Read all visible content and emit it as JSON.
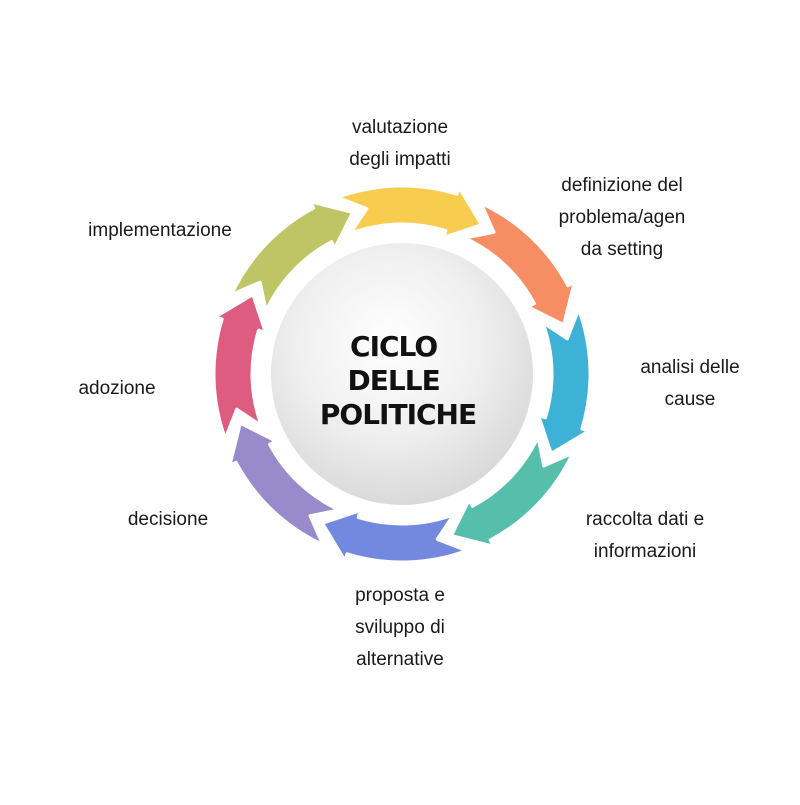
{
  "diagram": {
    "center_title_lines": [
      "CICLO",
      "DELLE",
      "POLITICHE"
    ],
    "steps": [
      {
        "label_lines": [
          "valutazione",
          "degli impatti"
        ],
        "color": "#F8CD4F"
      },
      {
        "label_lines": [
          "definizione del",
          "problema/agen",
          "da setting"
        ],
        "color": "#F68D63"
      },
      {
        "label_lines": [
          "analisi delle",
          "cause"
        ],
        "color": "#3DB1D6"
      },
      {
        "label_lines": [
          "raccolta dati e",
          "informazioni"
        ],
        "color": "#55BFAC"
      },
      {
        "label_lines": [
          "proposta e",
          "sviluppo di",
          "alternative"
        ],
        "color": "#7389E0"
      },
      {
        "label_lines": [
          "decisione"
        ],
        "color": "#988ACB"
      },
      {
        "label_lines": [
          "adozione"
        ],
        "color": "#DE5C7F"
      },
      {
        "label_lines": [
          "implementazione"
        ],
        "color": "#BFC564"
      }
    ]
  }
}
